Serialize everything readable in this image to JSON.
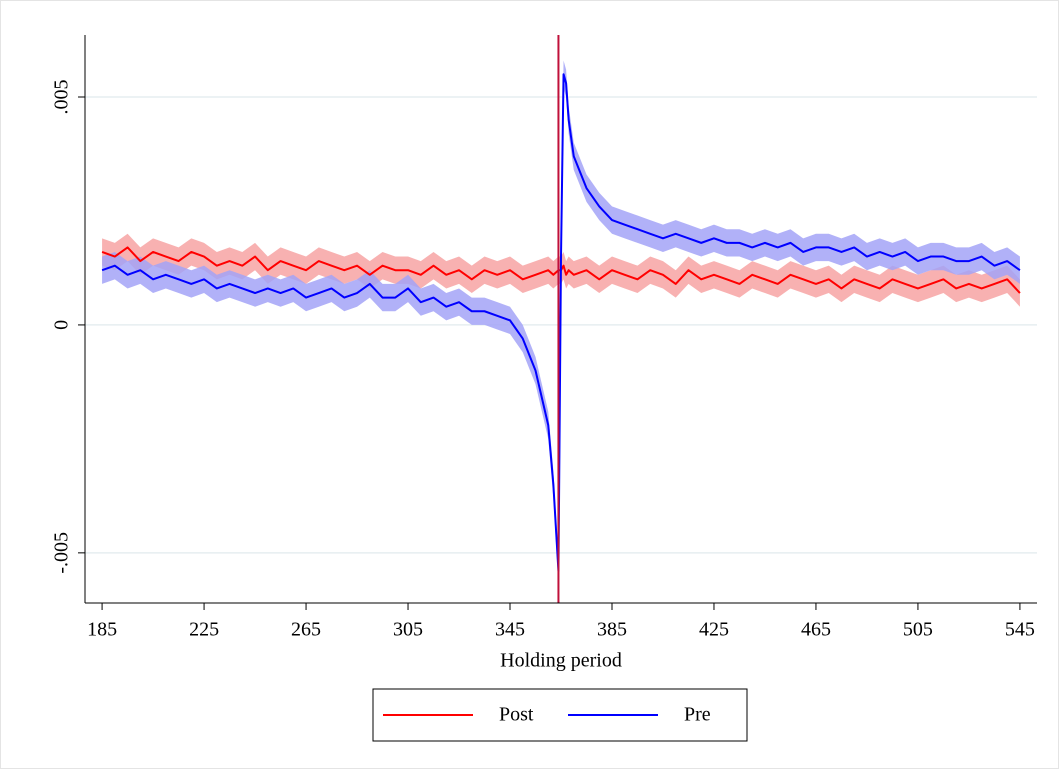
{
  "chart_data": {
    "type": "line",
    "xlabel": "Holding period",
    "x": [
      185,
      190,
      195,
      200,
      205,
      210,
      215,
      220,
      225,
      230,
      235,
      240,
      245,
      250,
      255,
      260,
      265,
      270,
      275,
      280,
      285,
      290,
      295,
      300,
      305,
      310,
      315,
      320,
      325,
      330,
      335,
      340,
      345,
      350,
      355,
      360,
      362,
      364,
      365,
      366,
      367,
      368,
      370,
      375,
      380,
      385,
      390,
      395,
      400,
      405,
      410,
      415,
      420,
      425,
      430,
      435,
      440,
      445,
      450,
      455,
      460,
      465,
      470,
      475,
      480,
      485,
      490,
      495,
      500,
      505,
      510,
      515,
      520,
      525,
      530,
      535,
      540,
      545
    ],
    "series": [
      {
        "name": "Post",
        "color": "#ff0000",
        "band_color": "#f7a3a3",
        "band_halfwidth": 0.0003,
        "values": [
          0.0016,
          0.0015,
          0.0017,
          0.0014,
          0.0016,
          0.0015,
          0.0014,
          0.0016,
          0.0015,
          0.0013,
          0.0014,
          0.0013,
          0.0015,
          0.0012,
          0.0014,
          0.0013,
          0.0012,
          0.0014,
          0.0013,
          0.0012,
          0.0013,
          0.0011,
          0.0013,
          0.0012,
          0.0012,
          0.0011,
          0.0013,
          0.0011,
          0.0012,
          0.001,
          0.0012,
          0.0011,
          0.0012,
          0.001,
          0.0011,
          0.0012,
          0.0011,
          0.0012,
          0.0012,
          0.0013,
          0.0011,
          0.0012,
          0.0011,
          0.0012,
          0.001,
          0.0012,
          0.0011,
          0.001,
          0.0012,
          0.0011,
          0.0009,
          0.0012,
          0.001,
          0.0011,
          0.001,
          0.0009,
          0.0011,
          0.001,
          0.0009,
          0.0011,
          0.001,
          0.0009,
          0.001,
          0.0008,
          0.001,
          0.0009,
          0.0008,
          0.001,
          0.0009,
          0.0008,
          0.0009,
          0.001,
          0.0008,
          0.0009,
          0.0008,
          0.0009,
          0.001,
          0.0007
        ]
      },
      {
        "name": "Pre",
        "color": "#0000ff",
        "band_color": "#a3a3f7",
        "band_halfwidth": 0.0003,
        "values": [
          0.0012,
          0.0013,
          0.0011,
          0.0012,
          0.001,
          0.0011,
          0.001,
          0.0009,
          0.001,
          0.0008,
          0.0009,
          0.0008,
          0.0007,
          0.0008,
          0.0007,
          0.0008,
          0.0006,
          0.0007,
          0.0008,
          0.0006,
          0.0007,
          0.0009,
          0.0006,
          0.0006,
          0.0008,
          0.0005,
          0.0006,
          0.0004,
          0.0005,
          0.0003,
          0.0003,
          0.0002,
          0.0001,
          -0.0003,
          -0.001,
          -0.0022,
          -0.0035,
          -0.0054,
          0.0015,
          0.0055,
          0.0053,
          0.0045,
          0.0037,
          0.003,
          0.0026,
          0.0023,
          0.0022,
          0.0021,
          0.002,
          0.0019,
          0.002,
          0.0019,
          0.0018,
          0.0019,
          0.0018,
          0.0018,
          0.0017,
          0.0018,
          0.0017,
          0.0018,
          0.0016,
          0.0017,
          0.0017,
          0.0016,
          0.0017,
          0.0015,
          0.0016,
          0.0015,
          0.0016,
          0.0014,
          0.0015,
          0.0015,
          0.0014,
          0.0014,
          0.0015,
          0.0013,
          0.0014,
          0.0012
        ]
      }
    ],
    "reference_line": {
      "x": 364,
      "color": "#c0103a"
    },
    "xlim": [
      178.3,
      551.7
    ],
    "ylim": [
      -0.0061,
      0.00636
    ],
    "xticks": [
      185,
      225,
      265,
      305,
      345,
      385,
      425,
      465,
      505,
      545
    ],
    "yticks": [
      {
        "value": -0.005,
        "label": "-.005"
      },
      0,
      {
        "value": 0.005,
        "label": ".005"
      }
    ],
    "grid": true,
    "legend": "bottom"
  }
}
